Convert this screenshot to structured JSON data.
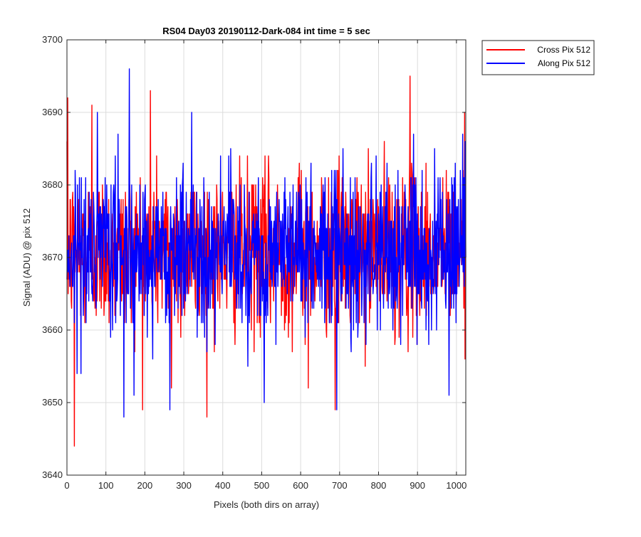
{
  "chart_data": {
    "type": "line",
    "title": "RS04 Day03 20190112-Dark-084 int time = 5 sec",
    "xlabel": "Pixels (both dirs on array)",
    "ylabel": "Signal (ADU) @ pix 512",
    "xlim": [
      0,
      1024
    ],
    "ylim": [
      3640,
      3700
    ],
    "xticks": [
      0,
      100,
      200,
      300,
      400,
      500,
      600,
      700,
      800,
      900,
      1000
    ],
    "yticks": [
      3640,
      3650,
      3660,
      3670,
      3680,
      3690,
      3700
    ],
    "grid": true,
    "legend_position": "outside-top-right",
    "series": [
      {
        "name": "Cross Pix 512",
        "color": "#ff0000",
        "mean": 3671,
        "spread": 5.5,
        "points_count": 1024,
        "notable_points": [
          {
            "x": 2,
            "y": 3692
          },
          {
            "x": 19,
            "y": 3644
          },
          {
            "x": 64,
            "y": 3691
          },
          {
            "x": 214,
            "y": 3693
          },
          {
            "x": 268,
            "y": 3652
          },
          {
            "x": 619,
            "y": 3652
          },
          {
            "x": 688,
            "y": 3649
          },
          {
            "x": 880,
            "y": 3695
          },
          {
            "x": 1020,
            "y": 3690
          }
        ]
      },
      {
        "name": "Along Pix 512",
        "color": "#0000ff",
        "mean": 3671,
        "spread": 5.5,
        "points_count": 1024,
        "notable_points": [
          {
            "x": 160,
            "y": 3696
          },
          {
            "x": 146,
            "y": 3648
          },
          {
            "x": 264,
            "y": 3649
          },
          {
            "x": 320,
            "y": 3690
          },
          {
            "x": 506,
            "y": 3650
          },
          {
            "x": 692,
            "y": 3649
          },
          {
            "x": 980,
            "y": 3651
          },
          {
            "x": 1015,
            "y": 3687
          }
        ]
      }
    ]
  }
}
